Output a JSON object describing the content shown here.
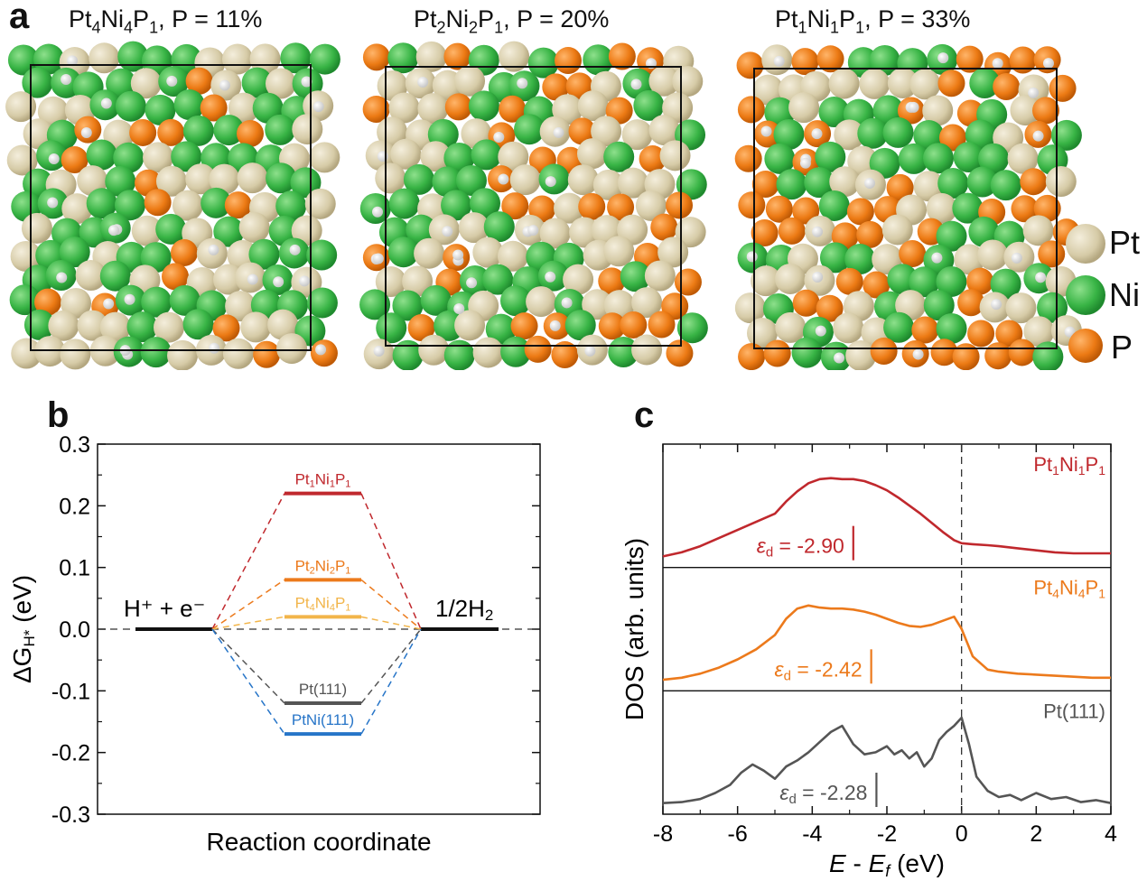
{
  "panels": {
    "a": {
      "letter": "a",
      "structures": [
        {
          "prefix": "Pt",
          "s1": "4",
          "m1": "Ni",
          "s2": "4",
          "m2": "P",
          "s3": "1",
          "suffix": ", P = 11%"
        },
        {
          "prefix": "Pt",
          "s1": "2",
          "m1": "Ni",
          "s2": "2",
          "m2": "P",
          "s3": "1",
          "suffix": ", P = 20%"
        },
        {
          "prefix": "Pt",
          "s1": "1",
          "m1": "Ni",
          "s2": "1",
          "m2": "P",
          "s3": "1",
          "suffix": ", P = 33%"
        }
      ],
      "legend": [
        {
          "label": "Pt",
          "color": "#d9cfae"
        },
        {
          "label": "Ni",
          "color": "#3bb54a"
        },
        {
          "label": "P",
          "color": "#ec7a14"
        }
      ],
      "h_color": "#f2f2f2"
    },
    "b": {
      "letter": "b"
    },
    "c": {
      "letter": "c"
    }
  },
  "chart_data": [
    {
      "type": "line",
      "panel": "b",
      "xlabel": "Reaction coordinate",
      "ylabel": "ΔG",
      "ylabel_sub": "H*",
      "ylabel_unit": " (eV)",
      "ylim": [
        -0.3,
        0.3
      ],
      "yticks": [
        "0.3",
        "0.2",
        "0.1",
        "0.0",
        "-0.1",
        "-0.2",
        "-0.3"
      ],
      "ytick_values": [
        0.3,
        0.2,
        0.1,
        0.0,
        -0.1,
        -0.2,
        -0.3
      ],
      "states": {
        "initial": {
          "label": "H⁺ + e⁻",
          "value": 0.0
        },
        "final": {
          "label_main": "1/2H",
          "label_sub": "2",
          "value": 0.0
        }
      },
      "series": [
        {
          "name": "Pt1Ni1P1",
          "value": 0.22,
          "color": "#c0282d",
          "label_parts": [
            "Pt",
            "1",
            "Ni",
            "1",
            "P",
            "1"
          ]
        },
        {
          "name": "Pt2Ni2P1",
          "value": 0.08,
          "color": "#ec7a1c",
          "label_parts": [
            "Pt",
            "2",
            "Ni",
            "2",
            "P",
            "1"
          ]
        },
        {
          "name": "Pt4Ni4P1",
          "value": 0.02,
          "color": "#f2b54a",
          "label_parts": [
            "Pt",
            "4",
            "Ni",
            "4",
            "P",
            "1"
          ]
        },
        {
          "name": "Pt(111)",
          "value": -0.12,
          "color": "#555555",
          "label_parts": [
            "Pt(111)"
          ]
        },
        {
          "name": "PtNi(111)",
          "value": -0.17,
          "color": "#2775c8",
          "label_parts": [
            "PtNi(111)"
          ]
        }
      ]
    },
    {
      "type": "line",
      "panel": "c",
      "xlabel_main": "E",
      "xlabel_mid": " - ",
      "xlabel_e": "E",
      "xlabel_sub": "f",
      "xlabel_unit": " (eV)",
      "ylabel": "DOS (arb. units)",
      "xlim": [
        -8,
        4
      ],
      "xticks": [
        -8,
        -6,
        -4,
        -2,
        0,
        2,
        4
      ],
      "xtick_labels": [
        "-8",
        "-6",
        "-4",
        "-2",
        "0",
        "2",
        "4"
      ],
      "fermi_line_x": 0,
      "series": [
        {
          "name": "Pt1Ni1P1",
          "label_parts": [
            "Pt",
            "1",
            "Ni",
            "1",
            "P",
            "1"
          ],
          "color": "#c0282d",
          "eps_symbol": "ε",
          "eps_sub": "d",
          "eps_value": -2.9,
          "eps_text": " = -2.90",
          "x": [
            -8,
            -7.5,
            -7,
            -6.5,
            -6,
            -5.5,
            -5,
            -4.7,
            -4.4,
            -4.1,
            -3.8,
            -3.5,
            -3.2,
            -2.9,
            -2.6,
            -2.3,
            -2.0,
            -1.7,
            -1.4,
            -1.1,
            -0.8,
            -0.5,
            -0.2,
            0,
            0.3,
            0.7,
            1,
            1.5,
            2,
            2.5,
            3,
            3.5,
            4
          ],
          "y": [
            0.02,
            0.06,
            0.12,
            0.2,
            0.28,
            0.36,
            0.44,
            0.56,
            0.66,
            0.74,
            0.78,
            0.79,
            0.78,
            0.78,
            0.76,
            0.72,
            0.67,
            0.6,
            0.52,
            0.44,
            0.35,
            0.26,
            0.18,
            0.15,
            0.14,
            0.13,
            0.12,
            0.1,
            0.08,
            0.06,
            0.05,
            0.05,
            0.05
          ]
        },
        {
          "name": "Pt4Ni4P1",
          "label_parts": [
            "Pt",
            "4",
            "Ni",
            "4",
            "P",
            "1"
          ],
          "color": "#ec7a1c",
          "eps_symbol": "ε",
          "eps_sub": "d",
          "eps_value": -2.42,
          "eps_text": " = -2.42",
          "x": [
            -8,
            -7.5,
            -7,
            -6.5,
            -6,
            -5.5,
            -5,
            -4.7,
            -4.4,
            -4.1,
            -3.8,
            -3.5,
            -3.2,
            -2.9,
            -2.6,
            -2.3,
            -2.0,
            -1.7,
            -1.4,
            -1.1,
            -0.8,
            -0.5,
            -0.2,
            0,
            0.3,
            0.7,
            1,
            1.5,
            2,
            2.5,
            3,
            3.5,
            4
          ],
          "y": [
            0.02,
            0.04,
            0.08,
            0.14,
            0.22,
            0.32,
            0.46,
            0.62,
            0.72,
            0.75,
            0.73,
            0.72,
            0.72,
            0.71,
            0.69,
            0.66,
            0.62,
            0.58,
            0.55,
            0.54,
            0.56,
            0.6,
            0.64,
            0.52,
            0.25,
            0.12,
            0.1,
            0.08,
            0.07,
            0.06,
            0.05,
            0.04,
            0.04
          ]
        },
        {
          "name": "Pt(111)",
          "label_parts": [
            "Pt(111)"
          ],
          "color": "#555555",
          "eps_symbol": "ε",
          "eps_sub": "d",
          "eps_value": -2.28,
          "eps_text": " = -2.28",
          "x": [
            -8,
            -7.5,
            -7,
            -6.6,
            -6.2,
            -5.9,
            -5.6,
            -5.3,
            -5.0,
            -4.7,
            -4.4,
            -4.1,
            -3.8,
            -3.5,
            -3.2,
            -2.9,
            -2.6,
            -2.3,
            -2.0,
            -1.8,
            -1.6,
            -1.4,
            -1.2,
            -1.0,
            -0.8,
            -0.6,
            -0.4,
            -0.2,
            0,
            0.2,
            0.4,
            0.7,
            1.0,
            1.3,
            1.6,
            2.0,
            2.4,
            2.8,
            3.2,
            3.6,
            4
          ],
          "y": [
            0.02,
            0.03,
            0.06,
            0.12,
            0.2,
            0.32,
            0.4,
            0.34,
            0.26,
            0.38,
            0.44,
            0.52,
            0.62,
            0.72,
            0.78,
            0.6,
            0.5,
            0.52,
            0.58,
            0.5,
            0.54,
            0.46,
            0.52,
            0.38,
            0.46,
            0.64,
            0.72,
            0.78,
            0.86,
            0.6,
            0.28,
            0.14,
            0.08,
            0.1,
            0.05,
            0.12,
            0.06,
            0.08,
            0.03,
            0.05,
            0.02
          ]
        }
      ]
    }
  ]
}
